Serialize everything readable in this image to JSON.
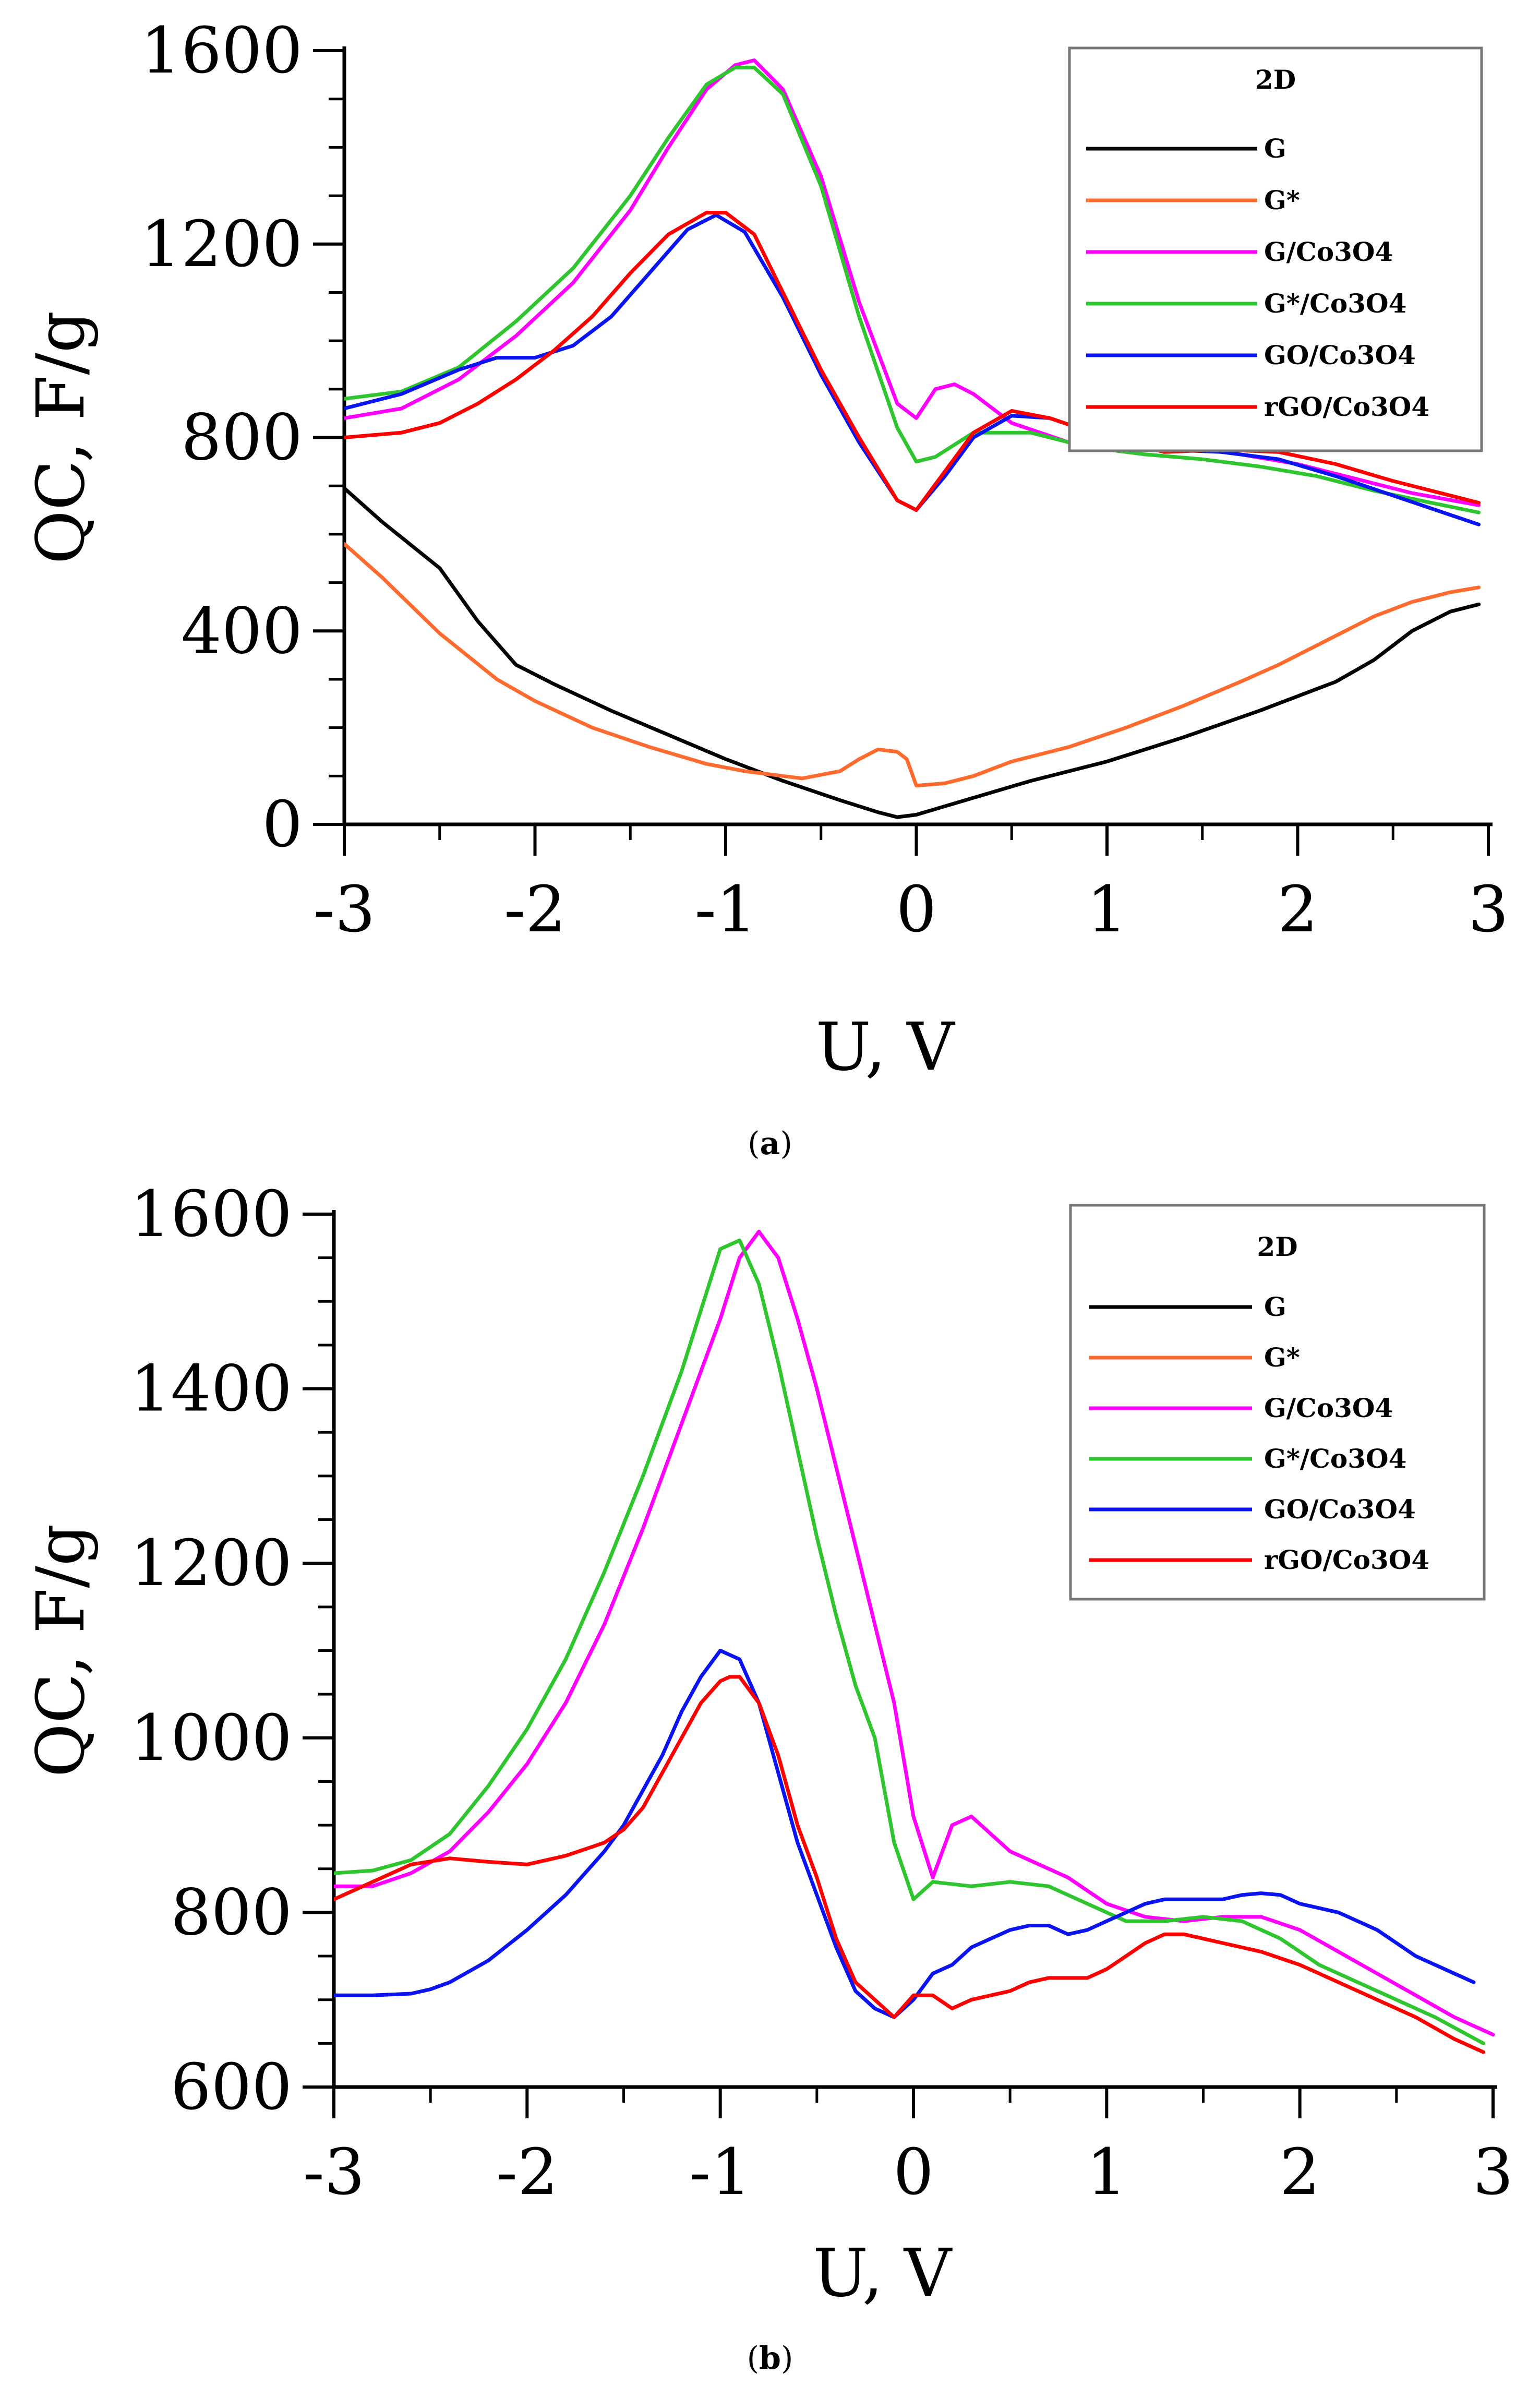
{
  "chart_data": [
    {
      "type": "line",
      "panel_label": "a",
      "xlabel": "U, V",
      "ylabel": "QC, F/g",
      "xlim": [
        -3,
        3
      ],
      "ylim": [
        0,
        1600
      ],
      "xticks": [
        "-3",
        "-2",
        "-1",
        "0",
        "1",
        "2",
        "3"
      ],
      "yticks": [
        "0",
        "400",
        "800",
        "1200",
        "1600"
      ],
      "grid": false,
      "legend_position": "top-right",
      "legend_title": "2D",
      "series": [
        {
          "name": "G",
          "color": "#000000",
          "x": [
            -3,
            -2.8,
            -2.5,
            -2.3,
            -2.1,
            -1.9,
            -1.6,
            -1.3,
            -1.0,
            -0.7,
            -0.4,
            -0.2,
            -0.1,
            0,
            0.3,
            0.6,
            1.0,
            1.4,
            1.8,
            2.2,
            2.4,
            2.6,
            2.8,
            2.95
          ],
          "y": [
            695,
            625,
            530,
            420,
            330,
            290,
            235,
            185,
            135,
            90,
            50,
            25,
            15,
            20,
            55,
            90,
            130,
            180,
            235,
            295,
            340,
            400,
            440,
            455
          ]
        },
        {
          "name": "G*",
          "color": "#ff6b2e",
          "x": [
            -3,
            -2.8,
            -2.5,
            -2.2,
            -2.0,
            -1.7,
            -1.4,
            -1.1,
            -0.9,
            -0.6,
            -0.4,
            -0.3,
            -0.2,
            -0.1,
            -0.05,
            0,
            0.15,
            0.3,
            0.5,
            0.8,
            1.1,
            1.4,
            1.7,
            1.9,
            2.2,
            2.4,
            2.6,
            2.8,
            2.95
          ],
          "y": [
            580,
            510,
            395,
            300,
            255,
            200,
            160,
            125,
            110,
            95,
            110,
            135,
            155,
            150,
            135,
            80,
            85,
            100,
            130,
            160,
            200,
            245,
            295,
            330,
            390,
            430,
            460,
            480,
            490
          ]
        },
        {
          "name": "G/Co3O4",
          "color": "#ff00ff",
          "x": [
            -3,
            -2.7,
            -2.4,
            -2.1,
            -1.8,
            -1.5,
            -1.3,
            -1.1,
            -0.95,
            -0.85,
            -0.7,
            -0.5,
            -0.3,
            -0.1,
            0,
            0.1,
            0.2,
            0.3,
            0.5,
            0.8,
            1.1,
            1.4,
            1.7,
            2.0,
            2.3,
            2.6,
            2.95
          ],
          "y": [
            840,
            860,
            920,
            1010,
            1120,
            1270,
            1400,
            1520,
            1570,
            1580,
            1520,
            1340,
            1080,
            870,
            840,
            900,
            910,
            890,
            830,
            790,
            780,
            780,
            765,
            745,
            715,
            685,
            660
          ]
        },
        {
          "name": "G*/Co3O4",
          "color": "#2ec52e",
          "x": [
            -3,
            -2.7,
            -2.4,
            -2.1,
            -1.8,
            -1.5,
            -1.3,
            -1.1,
            -0.95,
            -0.85,
            -0.7,
            -0.5,
            -0.3,
            -0.1,
            0,
            0.1,
            0.3,
            0.6,
            0.9,
            1.2,
            1.5,
            1.8,
            2.1,
            2.4,
            2.7,
            2.95
          ],
          "y": [
            880,
            895,
            945,
            1040,
            1150,
            1300,
            1420,
            1530,
            1565,
            1565,
            1510,
            1320,
            1050,
            820,
            750,
            760,
            810,
            810,
            780,
            765,
            755,
            740,
            720,
            690,
            665,
            645
          ]
        },
        {
          "name": "GO/Co3O4",
          "color": "#0a14f0",
          "x": [
            -3,
            -2.7,
            -2.4,
            -2.2,
            -2.0,
            -1.8,
            -1.6,
            -1.4,
            -1.2,
            -1.05,
            -0.9,
            -0.7,
            -0.5,
            -0.3,
            -0.1,
            0,
            0.15,
            0.3,
            0.5,
            0.7,
            1.0,
            1.3,
            1.6,
            1.9,
            2.2,
            2.5,
            2.8,
            2.95
          ],
          "y": [
            860,
            890,
            940,
            965,
            965,
            990,
            1050,
            1140,
            1230,
            1260,
            1225,
            1090,
            930,
            790,
            670,
            650,
            720,
            800,
            845,
            840,
            800,
            775,
            770,
            755,
            720,
            680,
            640,
            620
          ]
        },
        {
          "name": "rGO/Co3O4",
          "color": "#ff0000",
          "x": [
            -3,
            -2.7,
            -2.5,
            -2.3,
            -2.1,
            -1.9,
            -1.7,
            -1.5,
            -1.3,
            -1.1,
            -1.0,
            -0.85,
            -0.7,
            -0.5,
            -0.3,
            -0.1,
            0,
            0.15,
            0.3,
            0.5,
            0.7,
            1.0,
            1.3,
            1.6,
            1.9,
            2.2,
            2.5,
            2.8,
            2.95
          ],
          "y": [
            800,
            810,
            830,
            870,
            920,
            980,
            1050,
            1140,
            1220,
            1265,
            1265,
            1220,
            1100,
            940,
            800,
            670,
            650,
            730,
            810,
            855,
            840,
            800,
            770,
            775,
            770,
            745,
            710,
            680,
            665
          ]
        }
      ]
    },
    {
      "type": "line",
      "panel_label": "b",
      "xlabel": "U, V",
      "ylabel": "QC, F/g",
      "xlim": [
        -3,
        3
      ],
      "ylim": [
        600,
        1600
      ],
      "xticks": [
        "-3",
        "-2",
        "-1",
        "0",
        "1",
        "2",
        "3"
      ],
      "yticks": [
        "600",
        "800",
        "1000",
        "1200",
        "1400",
        "1600"
      ],
      "grid": false,
      "legend_position": "top-right",
      "legend_title": "2D",
      "legend_entries": [
        "G",
        "G*",
        "G/Co3O4",
        "G*/Co3O4",
        "GO/Co3O4",
        "rGO/Co3O4"
      ],
      "series": [
        {
          "name": "G/Co3O4",
          "color": "#ff00ff",
          "x": [
            -3,
            -2.8,
            -2.6,
            -2.4,
            -2.2,
            -2.0,
            -1.8,
            -1.6,
            -1.4,
            -1.2,
            -1.0,
            -0.9,
            -0.8,
            -0.7,
            -0.6,
            -0.5,
            -0.4,
            -0.3,
            -0.2,
            -0.1,
            0,
            0.1,
            0.2,
            0.3,
            0.4,
            0.5,
            0.6,
            0.8,
            1.0,
            1.2,
            1.4,
            1.6,
            1.8,
            2.0,
            2.2,
            2.4,
            2.6,
            2.8,
            3.0
          ],
          "y": [
            830,
            830,
            845,
            870,
            915,
            970,
            1040,
            1130,
            1240,
            1360,
            1480,
            1550,
            1580,
            1550,
            1480,
            1400,
            1310,
            1220,
            1130,
            1040,
            910,
            840,
            900,
            910,
            890,
            870,
            860,
            840,
            810,
            795,
            790,
            795,
            795,
            780,
            755,
            730,
            705,
            680,
            660
          ]
        },
        {
          "name": "G*/Co3O4",
          "color": "#2ec52e",
          "x": [
            -3,
            -2.8,
            -2.6,
            -2.4,
            -2.2,
            -2.0,
            -1.8,
            -1.6,
            -1.4,
            -1.2,
            -1.1,
            -1.0,
            -0.9,
            -0.8,
            -0.7,
            -0.6,
            -0.5,
            -0.4,
            -0.3,
            -0.2,
            -0.1,
            0,
            0.1,
            0.3,
            0.5,
            0.7,
            0.9,
            1.1,
            1.3,
            1.5,
            1.7,
            1.9,
            2.1,
            2.4,
            2.7,
            2.95
          ],
          "y": [
            845,
            848,
            860,
            890,
            945,
            1010,
            1090,
            1190,
            1300,
            1420,
            1490,
            1560,
            1570,
            1520,
            1430,
            1330,
            1230,
            1140,
            1060,
            1000,
            880,
            815,
            835,
            830,
            835,
            830,
            810,
            790,
            790,
            795,
            790,
            770,
            740,
            710,
            680,
            650
          ]
        },
        {
          "name": "GO/Co3O4",
          "color": "#0a14f0",
          "x": [
            -3,
            -2.8,
            -2.6,
            -2.5,
            -2.4,
            -2.2,
            -2.0,
            -1.8,
            -1.6,
            -1.5,
            -1.4,
            -1.3,
            -1.2,
            -1.1,
            -1.0,
            -0.9,
            -0.8,
            -0.7,
            -0.6,
            -0.5,
            -0.4,
            -0.3,
            -0.2,
            -0.1,
            0,
            0.1,
            0.2,
            0.3,
            0.4,
            0.5,
            0.6,
            0.7,
            0.8,
            0.9,
            1.0,
            1.1,
            1.2,
            1.3,
            1.4,
            1.5,
            1.6,
            1.7,
            1.8,
            1.9,
            2.0,
            2.2,
            2.4,
            2.6,
            2.8,
            2.9
          ],
          "y": [
            705,
            705,
            707,
            712,
            720,
            745,
            780,
            820,
            870,
            900,
            940,
            980,
            1030,
            1070,
            1100,
            1090,
            1040,
            960,
            880,
            820,
            760,
            710,
            690,
            680,
            700,
            730,
            740,
            760,
            770,
            780,
            785,
            785,
            775,
            780,
            790,
            800,
            810,
            815,
            815,
            815,
            815,
            820,
            822,
            820,
            810,
            800,
            780,
            750,
            730,
            720
          ]
        },
        {
          "name": "rGO/Co3O4",
          "color": "#ff0000",
          "x": [
            -3,
            -2.8,
            -2.6,
            -2.4,
            -2.2,
            -2.0,
            -1.8,
            -1.6,
            -1.5,
            -1.4,
            -1.3,
            -1.2,
            -1.1,
            -1.0,
            -0.95,
            -0.9,
            -0.8,
            -0.7,
            -0.6,
            -0.5,
            -0.4,
            -0.3,
            -0.2,
            -0.1,
            0,
            0.1,
            0.2,
            0.3,
            0.4,
            0.5,
            0.6,
            0.7,
            0.8,
            0.9,
            1.0,
            1.1,
            1.2,
            1.3,
            1.4,
            1.5,
            1.6,
            1.8,
            2.0,
            2.2,
            2.4,
            2.6,
            2.8,
            2.95
          ],
          "y": [
            815,
            835,
            855,
            862,
            858,
            855,
            865,
            880,
            895,
            920,
            960,
            1000,
            1040,
            1065,
            1070,
            1070,
            1040,
            980,
            900,
            840,
            770,
            720,
            700,
            680,
            705,
            705,
            690,
            700,
            705,
            710,
            720,
            725,
            725,
            725,
            735,
            750,
            765,
            775,
            775,
            770,
            765,
            755,
            740,
            720,
            700,
            680,
            655,
            640
          ]
        }
      ]
    }
  ],
  "captions": [
    "(a)",
    "(b)"
  ]
}
